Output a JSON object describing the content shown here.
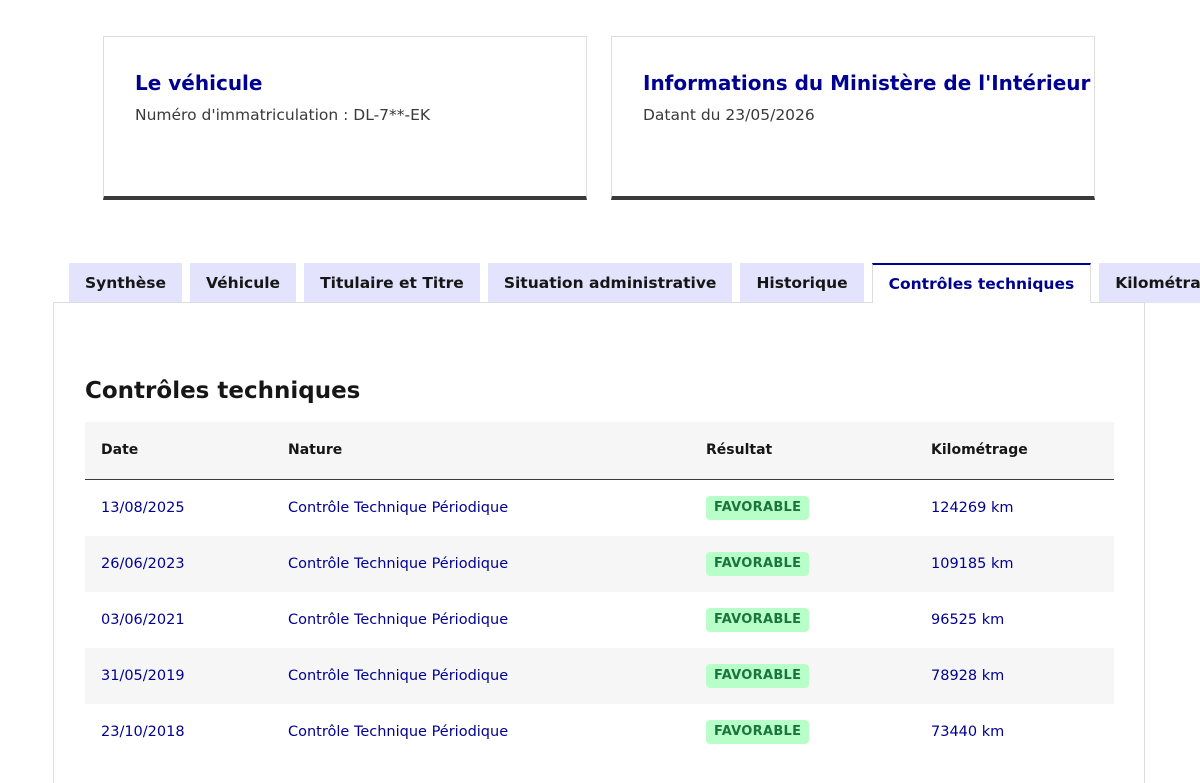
{
  "cards": {
    "vehicle": {
      "title": "Le véhicule",
      "description": "Numéro d'immatriculation : DL-7**-EK"
    },
    "ministry": {
      "title": "Informations du Ministère de l'Intérieur",
      "description": "Datant du 23/05/2026"
    }
  },
  "tabs": [
    {
      "label": "Synthèse",
      "active": false
    },
    {
      "label": "Véhicule",
      "active": false
    },
    {
      "label": "Titulaire et Titre",
      "active": false
    },
    {
      "label": "Situation administrative",
      "active": false
    },
    {
      "label": "Historique",
      "active": false
    },
    {
      "label": "Contrôles techniques",
      "active": true
    },
    {
      "label": "Kilométrage",
      "active": false
    }
  ],
  "panel": {
    "title": "Contrôles techniques"
  },
  "table": {
    "headers": {
      "date": "Date",
      "nature": "Nature",
      "result": "Résultat",
      "mileage": "Kilométrage"
    },
    "rows": [
      {
        "date": "13/08/2025",
        "nature": "Contrôle Technique Périodique",
        "result": "FAVORABLE",
        "mileage": "124269 km"
      },
      {
        "date": "26/06/2023",
        "nature": "Contrôle Technique Périodique",
        "result": "FAVORABLE",
        "mileage": "109185 km"
      },
      {
        "date": "03/06/2021",
        "nature": "Contrôle Technique Périodique",
        "result": "FAVORABLE",
        "mileage": "96525 km"
      },
      {
        "date": "31/05/2019",
        "nature": "Contrôle Technique Périodique",
        "result": "FAVORABLE",
        "mileage": "78928 km"
      },
      {
        "date": "23/10/2018",
        "nature": "Contrôle Technique Périodique",
        "result": "FAVORABLE",
        "mileage": "73440 km"
      }
    ]
  },
  "colors": {
    "primary_blue": "#000091",
    "tab_background": "#e3e3fd",
    "success_badge_background": "#b8fec9",
    "success_badge_text": "#18753c",
    "row_stripe": "#f6f6f6"
  }
}
